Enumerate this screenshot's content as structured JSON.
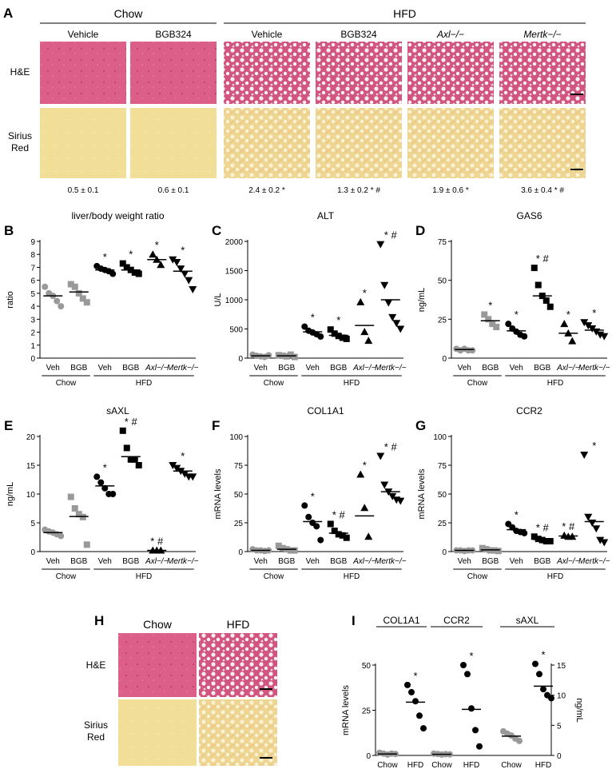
{
  "panel_a": {
    "label": "A",
    "groups": [
      "Chow",
      "HFD"
    ],
    "columns": [
      "Vehicle",
      "BGB324",
      "Vehicle",
      "BGB324",
      "Axl−/−",
      "Mertk−/−"
    ],
    "rows": [
      "H&E",
      "Sirius Red"
    ],
    "quantification": [
      "0.5 ± 0.1",
      "0.6 ± 0.1",
      "2.4 ± 0.2 *",
      "1.3 ± 0.2 * #",
      "1.9 ± 0.6 *",
      "3.6 ± 0.4 * #"
    ]
  },
  "panel_h": {
    "label": "H",
    "columns": [
      "Chow",
      "HFD"
    ],
    "rows": [
      "H&E",
      "Sirius Red"
    ]
  },
  "chart_data": [
    {
      "type": "dot",
      "label": "B",
      "title": "liver/body weight ratio",
      "y_label": "ratio",
      "ylim": [
        0,
        9
      ],
      "yticks": [
        0,
        1,
        2,
        3,
        4,
        5,
        6,
        7,
        8,
        9
      ],
      "categories": [
        "Veh",
        "BGB",
        "Veh",
        "BGB",
        "Axl−/−",
        "Mertk−/−"
      ],
      "group_labels": [
        "Chow",
        "HFD"
      ],
      "markers": [
        "circle",
        "square",
        "circle",
        "square",
        "triangle",
        "down-triangle"
      ],
      "colors": [
        "#999999",
        "#999999",
        "#000000",
        "#000000",
        "#000000",
        "#000000"
      ],
      "values": [
        [
          5.5,
          5.0,
          4.8,
          4.4,
          4.0
        ],
        [
          5.7,
          5.5,
          5.0,
          4.6,
          4.3
        ],
        [
          7.1,
          6.9,
          6.8,
          6.7,
          6.5
        ],
        [
          7.3,
          7.0,
          6.8,
          6.6,
          6.5
        ],
        [
          8.0,
          7.6,
          7.2
        ],
        [
          7.6,
          7.4,
          6.9,
          6.5,
          6.0,
          5.3
        ]
      ],
      "means": [
        4.8,
        5.1,
        6.8,
        6.8,
        7.6,
        6.7
      ],
      "annotations": [
        null,
        null,
        "*",
        "*",
        "*",
        "*"
      ]
    },
    {
      "type": "dot",
      "label": "C",
      "title": "ALT",
      "y_label": "U/L",
      "ylim": [
        0,
        2000
      ],
      "yticks": [
        0,
        500,
        1000,
        1500,
        2000
      ],
      "categories": [
        "Veh",
        "BGB",
        "Veh",
        "BGB",
        "Axl−/−",
        "Mertk−/−"
      ],
      "group_labels": [
        "Chow",
        "HFD"
      ],
      "markers": [
        "circle",
        "square",
        "circle",
        "square",
        "triangle",
        "down-triangle"
      ],
      "colors": [
        "#999999",
        "#999999",
        "#000000",
        "#000000",
        "#000000",
        "#000000"
      ],
      "values": [
        [
          60,
          40,
          30,
          20,
          50
        ],
        [
          50,
          40,
          30,
          60,
          20
        ],
        [
          540,
          470,
          440,
          410,
          370
        ],
        [
          490,
          420,
          380,
          350,
          330
        ],
        [
          960,
          450,
          300
        ],
        [
          1950,
          1250,
          950,
          700,
          600,
          500
        ]
      ],
      "means": [
        40,
        40,
        450,
        390,
        560,
        1000
      ],
      "annotations": [
        null,
        null,
        "*",
        "*",
        "*",
        "* #"
      ]
    },
    {
      "type": "dot",
      "label": "D",
      "title": "GAS6",
      "y_label": "ng/mL",
      "ylim": [
        0,
        75
      ],
      "yticks": [
        0,
        25,
        50,
        75
      ],
      "categories": [
        "Veh",
        "BGB",
        "Veh",
        "BGB",
        "Axl−/−",
        "Mertk−/−"
      ],
      "group_labels": [
        "Chow",
        "HFD"
      ],
      "markers": [
        "circle",
        "square",
        "circle",
        "square",
        "triangle",
        "down-triangle"
      ],
      "colors": [
        "#999999",
        "#999999",
        "#000000",
        "#000000",
        "#000000",
        "#000000"
      ],
      "values": [
        [
          6,
          5,
          6,
          5,
          5
        ],
        [
          28,
          25,
          22,
          20
        ],
        [
          22,
          19,
          17,
          15,
          14
        ],
        [
          58,
          47,
          40,
          37,
          33
        ],
        [
          22,
          16,
          11
        ],
        [
          23,
          21,
          19,
          17,
          15,
          14
        ]
      ],
      "means": [
        5.5,
        24,
        17.5,
        40,
        16,
        18
      ],
      "annotations": [
        null,
        "*",
        "*",
        "* #",
        "*",
        "*"
      ]
    },
    {
      "type": "dot",
      "label": "E",
      "title": "sAXL",
      "y_label": "ng/mL",
      "ylim": [
        0,
        20
      ],
      "yticks": [
        0,
        5,
        10,
        15,
        20
      ],
      "categories": [
        "Veh",
        "BGB",
        "Veh",
        "BGB",
        "Axl−/−",
        "Mertk−/−"
      ],
      "group_labels": [
        "Chow",
        "HFD"
      ],
      "markers": [
        "circle",
        "square",
        "circle",
        "square",
        "triangle",
        "down-triangle"
      ],
      "colors": [
        "#999999",
        "#999999",
        "#000000",
        "#000000",
        "#000000",
        "#000000"
      ],
      "values": [
        [
          3.8,
          3.5,
          3.3,
          3.0,
          2.7
        ],
        [
          9.5,
          7.5,
          6.5,
          6.0,
          1.2
        ],
        [
          13,
          12,
          11,
          10,
          10
        ],
        [
          21,
          18,
          16,
          16,
          15
        ],
        [
          0.2,
          0.2,
          0.2
        ],
        [
          15,
          14.5,
          14,
          13.5,
          13,
          13
        ]
      ],
      "means": [
        3.3,
        6.1,
        11.4,
        16.5,
        0.2,
        14
      ],
      "annotations": [
        null,
        null,
        "*",
        "* #",
        "* #",
        "*"
      ]
    },
    {
      "type": "dot",
      "label": "F",
      "title": "COL1A1",
      "y_label": "mRNA levels",
      "ylim": [
        0,
        100
      ],
      "yticks": [
        0,
        25,
        50,
        75,
        100
      ],
      "categories": [
        "Veh",
        "BGB",
        "Veh",
        "BGB",
        "Axl−/−",
        "Mertk−/−"
      ],
      "group_labels": [
        "Chow",
        "HFD"
      ],
      "markers": [
        "circle",
        "square",
        "circle",
        "square",
        "triangle",
        "down-triangle"
      ],
      "colors": [
        "#999999",
        "#999999",
        "#000000",
        "#000000",
        "#000000",
        "#000000"
      ],
      "values": [
        [
          2,
          1,
          1,
          0.5,
          1
        ],
        [
          5,
          3,
          2,
          1,
          1
        ],
        [
          40,
          30,
          25,
          22,
          10
        ],
        [
          24,
          18,
          15,
          14,
          12
        ],
        [
          67,
          38,
          13
        ],
        [
          83,
          58,
          52,
          48,
          45,
          44
        ]
      ],
      "means": [
        1,
        2,
        26,
        16,
        31,
        52
      ],
      "annotations": [
        null,
        null,
        "*",
        "* #",
        "*",
        "* #"
      ]
    },
    {
      "type": "dot",
      "label": "G",
      "title": "CCR2",
      "y_label": "mRNA levels",
      "ylim": [
        0,
        100
      ],
      "yticks": [
        0,
        25,
        50,
        75,
        100
      ],
      "categories": [
        "Veh",
        "BGB",
        "Veh",
        "BGB",
        "Axl−/−",
        "Mertk−/−"
      ],
      "group_labels": [
        "Chow",
        "HFD"
      ],
      "markers": [
        "circle",
        "square",
        "circle",
        "square",
        "triangle",
        "down-triangle"
      ],
      "colors": [
        "#999999",
        "#999999",
        "#000000",
        "#000000",
        "#000000",
        "#000000"
      ],
      "values": [
        [
          1,
          1,
          0.5,
          1,
          1
        ],
        [
          3,
          2,
          1,
          1,
          0.5
        ],
        [
          24,
          21,
          18,
          17,
          16
        ],
        [
          13,
          11,
          10,
          9,
          9
        ],
        [
          14,
          13,
          13
        ],
        [
          84,
          30,
          25,
          20,
          10,
          8
        ]
      ],
      "means": [
        1,
        1.5,
        19,
        10.5,
        13.5,
        26
      ],
      "annotations": [
        null,
        null,
        "*",
        "* #",
        "* #",
        "*"
      ]
    },
    {
      "type": "dot",
      "label": "I",
      "y_label": "mRNA levels",
      "y2_label": "ng/mL",
      "ylim": [
        0,
        50
      ],
      "yticks": [
        0,
        25,
        50
      ],
      "y2lim": [
        0,
        15
      ],
      "y2ticks": [
        0,
        5,
        10,
        15
      ],
      "categories": [
        "Chow",
        "HFD",
        "Chow",
        "HFD",
        "Chow",
        "HFD"
      ],
      "group_labels": [
        "COL1A1",
        "CCR2",
        "sAXL"
      ],
      "markers": [
        "circle",
        "circle",
        "circle",
        "circle",
        "circle",
        "circle"
      ],
      "colors": [
        "#999999",
        "#000000",
        "#999999",
        "#000000",
        "#999999",
        "#000000"
      ],
      "axes": [
        "y",
        "y",
        "y",
        "y",
        "y2",
        "y2"
      ],
      "values": [
        [
          1.5,
          1,
          0.5,
          1,
          0.8
        ],
        [
          39,
          35,
          30,
          22,
          15
        ],
        [
          1,
          0.8,
          0.5,
          0.7,
          0.6
        ],
        [
          50,
          45,
          26,
          14,
          5
        ],
        [
          4,
          3.6,
          3.3,
          2.8,
          2.4
        ],
        [
          15.2,
          13.5,
          11,
          10,
          9.5
        ]
      ],
      "means": [
        0.8,
        29.5,
        0.6,
        25.5,
        3.2,
        11.5
      ],
      "annotations": [
        null,
        "*",
        null,
        "*",
        null,
        "*"
      ]
    }
  ]
}
